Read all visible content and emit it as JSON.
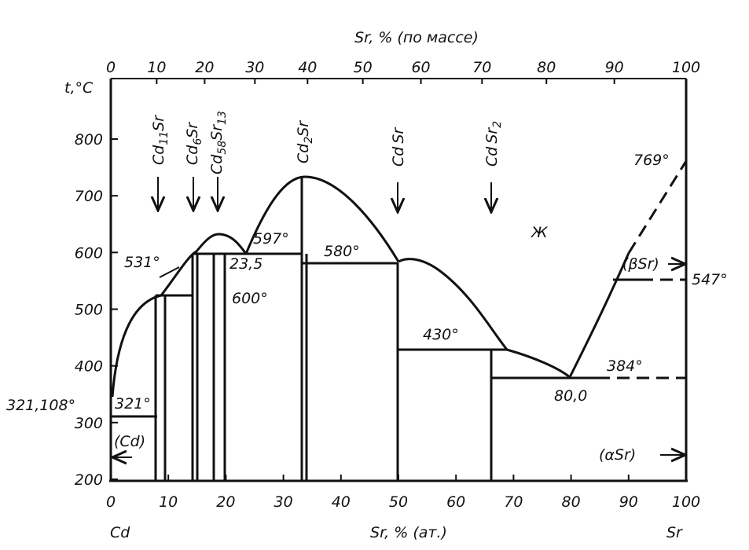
{
  "axes": {
    "y_label": "t,°C",
    "yticks": [
      200,
      300,
      400,
      500,
      600,
      700,
      800
    ],
    "x_bottom_label": "Sr, % (ат.)",
    "x_bottom_ticks": [
      0,
      10,
      20,
      30,
      40,
      50,
      60,
      70,
      80,
      90,
      100
    ],
    "x_top_label": "Sr, % (по массе)",
    "x_top_ticks": [
      0,
      10,
      20,
      30,
      40,
      50,
      60,
      70,
      80,
      90,
      100
    ],
    "left_element": "Cd",
    "right_element": "Sr"
  },
  "compounds": [
    [
      "Cd",
      "11",
      "Sr"
    ],
    [
      "Cd",
      "6",
      "Sr"
    ],
    [
      "Cd",
      "58",
      "Sr",
      "13"
    ],
    [
      "Cd",
      "2",
      "Sr"
    ],
    [
      "Cd",
      "Sr"
    ],
    [
      "Cd",
      "Sr",
      "2"
    ]
  ],
  "annotations": [
    "321,108°",
    "321°",
    "(Cd)",
    "531°",
    "600°",
    "23,5",
    "597°",
    "580°",
    "430°",
    "80,0",
    "384°",
    "769°",
    "(βSr)",
    "547°",
    "(αSr)",
    "Ж"
  ]
}
